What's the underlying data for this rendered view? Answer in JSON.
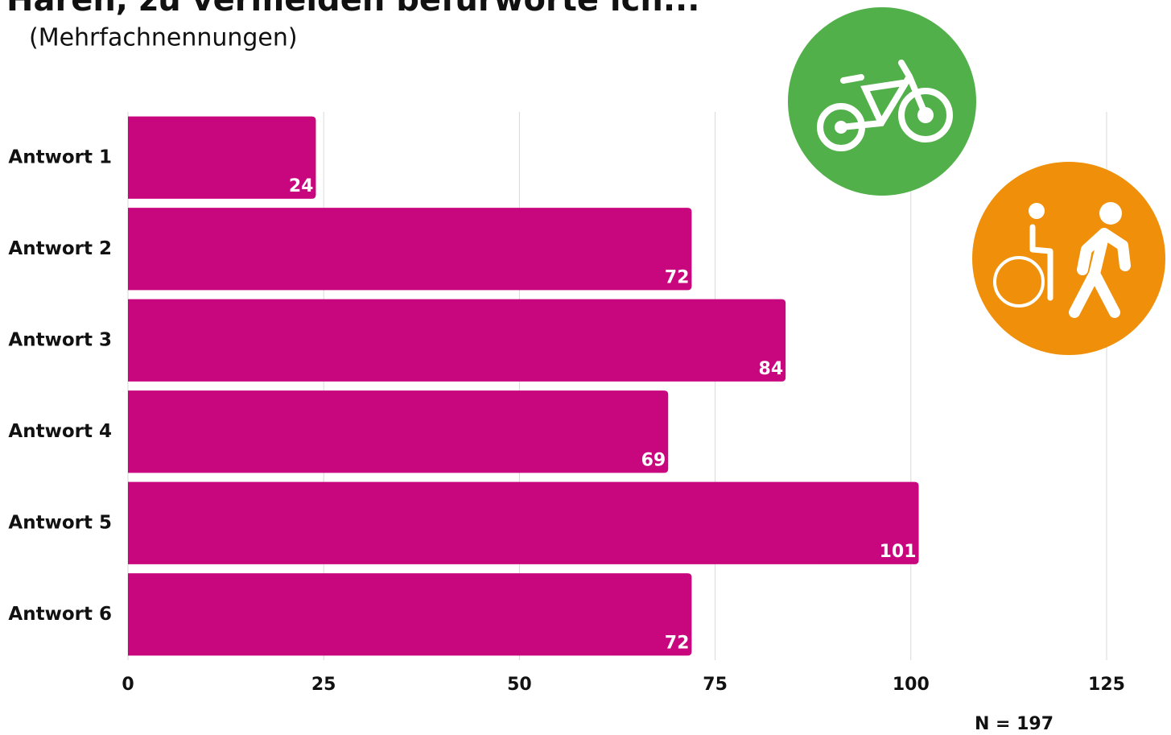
{
  "chart_data": {
    "type": "bar",
    "orientation": "horizontal",
    "title": "Haren, zu vermeiden befürworte ich...",
    "subtitle": "(Mehrfachnennungen)",
    "categories": [
      "Antwort 1",
      "Antwort 2",
      "Antwort 3",
      "Antwort 4",
      "Antwort 5",
      "Antwort 6"
    ],
    "values": [
      24,
      72,
      84,
      69,
      101,
      72
    ],
    "color": "#c8067d",
    "xlim": [
      0,
      125
    ],
    "xticks": [
      0,
      25,
      50,
      75,
      100,
      125
    ],
    "grid": true,
    "annotation": "N = 197"
  }
}
